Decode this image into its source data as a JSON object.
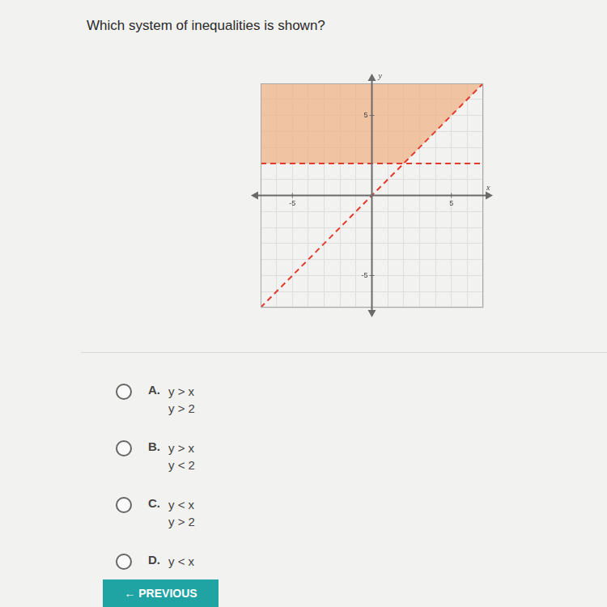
{
  "question": "Which system of inequalities is shown?",
  "chart_data": {
    "type": "line",
    "xlabel": "x",
    "ylabel": "y",
    "x": [
      -7,
      2,
      7
    ],
    "series": [
      {
        "type": "area",
        "color": "#eeb083",
        "values": [
          2,
          2,
          7
        ]
      },
      {
        "color": "#e33a2c",
        "line_style": "dashed",
        "values": [
          -7,
          2,
          7
        ]
      },
      {
        "color": "#e33a2c",
        "line_style": "dashed",
        "values": [
          2,
          2,
          2
        ]
      }
    ],
    "xlim": [
      -7,
      7
    ],
    "ylim": [
      -7,
      7
    ],
    "xticks": [
      -5,
      5
    ],
    "yticks": [
      -5,
      5
    ],
    "grid": true
  },
  "options": [
    {
      "letter": "A.",
      "lines": [
        "y > x",
        "y > 2"
      ]
    },
    {
      "letter": "B.",
      "lines": [
        "y > x",
        "y < 2"
      ]
    },
    {
      "letter": "C.",
      "lines": [
        "y < x",
        "y > 2"
      ]
    },
    {
      "letter": "D.",
      "lines": [
        "y < x"
      ]
    }
  ],
  "button": "← PREVIOUS"
}
